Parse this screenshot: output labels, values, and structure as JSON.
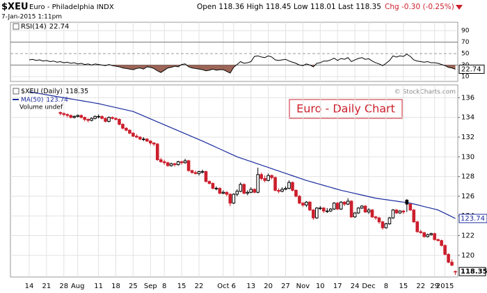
{
  "chart_data": {
    "type": "candlestick",
    "title": "$XEU",
    "subtitle": "Euro - Philadelphia INDX",
    "date": "7-Jan-2015 1:11pm",
    "quote": "Open 118.36 High 118.45 Low 118.01 Last 118.35",
    "change": "Chg -0.30 (-0.25%)",
    "credit": "© StockCharts.com",
    "annotation": "Euro - Daily Chart",
    "name": "$XEU (Daily)",
    "volume_label": "Volume undef",
    "up_color": "#000000",
    "down_color": "#cc1f2d",
    "grid": true,
    "ylim": [
      117.8,
      137.3
    ],
    "yticks": [
      120,
      122,
      124,
      126,
      128,
      130,
      132,
      134,
      136
    ],
    "categories": [
      "14",
      null,
      null,
      null,
      null,
      "21",
      null,
      null,
      null,
      null,
      "28",
      null,
      null,
      null,
      "Aug",
      null,
      null,
      null,
      null,
      null,
      "11",
      null,
      null,
      null,
      null,
      "18",
      null,
      null,
      null,
      null,
      "25",
      null,
      null,
      null,
      null,
      "Sep",
      null,
      null,
      null,
      "8",
      null,
      null,
      null,
      null,
      "15",
      null,
      null,
      null,
      null,
      "22",
      null,
      null,
      null,
      null,
      null,
      null,
      "Oct",
      null,
      null,
      "6",
      null,
      null,
      null,
      null,
      "13",
      null,
      null,
      null,
      null,
      "20",
      null,
      null,
      null,
      null,
      "27",
      null,
      null,
      null,
      null,
      "Nov",
      null,
      null,
      null,
      null,
      "10",
      null,
      null,
      null,
      null,
      "17",
      null,
      null,
      null,
      null,
      "24",
      null,
      null,
      null,
      "Dec",
      null,
      null,
      null,
      null,
      "8",
      null,
      null,
      null,
      null,
      "15",
      null,
      null,
      null,
      null,
      "22",
      null,
      null,
      null,
      "29",
      null,
      null,
      "2015",
      null,
      null,
      null
    ],
    "candles": [
      null,
      null,
      null,
      null,
      null,
      null,
      null,
      null,
      null,
      [
        134.5,
        134.6,
        134.2,
        134.4
      ],
      [
        134.4,
        134.5,
        134.1,
        134.3
      ],
      [
        134.3,
        134.4,
        134.0,
        134.2
      ],
      [
        134.2,
        134.3,
        133.9,
        134.0
      ],
      [
        134.0,
        134.2,
        133.9,
        134.1
      ],
      [
        134.1,
        134.3,
        134.0,
        134.2
      ],
      [
        134.2,
        134.3,
        133.9,
        134.0
      ],
      [
        134.0,
        134.1,
        133.6,
        133.8
      ],
      [
        133.8,
        133.9,
        133.5,
        133.7
      ],
      [
        133.7,
        134.0,
        133.6,
        133.9
      ],
      [
        133.9,
        134.2,
        133.8,
        134.1
      ],
      [
        134.1,
        134.3,
        133.9,
        134.1
      ],
      [
        134.1,
        134.2,
        133.8,
        133.9
      ],
      [
        133.9,
        134.0,
        133.5,
        133.6
      ],
      [
        133.6,
        134.1,
        133.5,
        134.0
      ],
      [
        134.0,
        134.1,
        133.8,
        133.9
      ],
      [
        133.9,
        134.0,
        133.7,
        133.8
      ],
      [
        133.8,
        133.9,
        133.2,
        133.3
      ],
      [
        133.3,
        133.4,
        132.8,
        132.9
      ],
      [
        132.9,
        133.0,
        132.6,
        132.7
      ],
      [
        132.7,
        132.8,
        132.3,
        132.4
      ],
      [
        132.4,
        132.5,
        132.0,
        132.1
      ],
      [
        132.1,
        132.3,
        131.9,
        132.0
      ],
      [
        132.0,
        132.1,
        131.7,
        131.8
      ],
      [
        131.8,
        132.0,
        131.6,
        131.8
      ],
      [
        131.8,
        131.9,
        131.5,
        131.6
      ],
      [
        131.6,
        131.7,
        131.2,
        131.4
      ],
      [
        131.4,
        131.5,
        131.1,
        131.3
      ],
      [
        131.3,
        131.4,
        129.6,
        129.7
      ],
      [
        129.7,
        129.9,
        129.4,
        129.5
      ],
      [
        129.5,
        129.7,
        129.2,
        129.4
      ],
      [
        129.4,
        129.5,
        129.0,
        129.1
      ],
      [
        129.1,
        129.4,
        129.0,
        129.3
      ],
      [
        129.3,
        129.4,
        129.0,
        129.2
      ],
      [
        129.2,
        129.6,
        129.1,
        129.5
      ],
      [
        129.5,
        129.6,
        129.2,
        129.4
      ],
      [
        129.4,
        129.8,
        129.3,
        129.6
      ],
      [
        129.6,
        129.7,
        128.5,
        128.6
      ],
      [
        128.6,
        128.7,
        128.3,
        128.4
      ],
      [
        128.4,
        128.6,
        128.2,
        128.3
      ],
      [
        128.3,
        128.6,
        128.1,
        128.5
      ],
      [
        128.5,
        128.7,
        128.3,
        128.5
      ],
      [
        128.5,
        128.6,
        127.4,
        127.5
      ],
      [
        127.5,
        127.6,
        127.2,
        127.3
      ],
      [
        127.3,
        127.4,
        126.7,
        126.8
      ],
      [
        126.8,
        127.0,
        126.6,
        126.8
      ],
      [
        126.8,
        126.9,
        126.2,
        126.3
      ],
      [
        126.3,
        126.6,
        126.2,
        126.4
      ],
      [
        126.4,
        126.5,
        126.0,
        126.2
      ],
      [
        126.2,
        126.3,
        125.0,
        125.3
      ],
      [
        125.3,
        126.3,
        125.2,
        126.2
      ],
      [
        126.2,
        126.7,
        126.0,
        126.5
      ],
      [
        126.5,
        127.4,
        126.4,
        127.2
      ],
      [
        127.2,
        127.3,
        126.2,
        126.3
      ],
      [
        126.3,
        126.6,
        126.1,
        126.4
      ],
      [
        126.4,
        126.9,
        126.3,
        126.7
      ],
      [
        126.7,
        126.8,
        126.3,
        126.4
      ],
      [
        126.4,
        128.9,
        126.3,
        128.2
      ],
      [
        128.2,
        128.4,
        127.6,
        127.8
      ],
      [
        127.8,
        128.1,
        127.4,
        127.6
      ],
      [
        127.6,
        128.3,
        127.5,
        128.1
      ],
      [
        128.1,
        128.2,
        127.7,
        127.9
      ],
      [
        127.9,
        128.0,
        126.5,
        126.6
      ],
      [
        126.6,
        126.8,
        126.3,
        126.5
      ],
      [
        126.5,
        126.9,
        126.4,
        126.7
      ],
      [
        126.7,
        127.0,
        126.6,
        126.8
      ],
      [
        126.8,
        127.6,
        126.7,
        127.4
      ],
      [
        127.4,
        127.5,
        126.5,
        126.6
      ],
      [
        126.6,
        126.7,
        125.9,
        126.0
      ],
      [
        126.0,
        126.1,
        125.2,
        125.3
      ],
      [
        125.3,
        125.4,
        124.9,
        125.1
      ],
      [
        125.1,
        125.5,
        124.9,
        125.4
      ],
      [
        125.4,
        125.5,
        124.5,
        124.6
      ],
      [
        124.6,
        124.7,
        123.6,
        123.8
      ],
      [
        123.8,
        124.9,
        123.7,
        124.8
      ],
      [
        124.8,
        125.0,
        124.6,
        124.8
      ],
      [
        124.8,
        124.9,
        124.3,
        124.5
      ],
      [
        124.5,
        124.8,
        124.3,
        124.5
      ],
      [
        124.5,
        124.8,
        124.4,
        124.7
      ],
      [
        124.7,
        125.4,
        124.6,
        125.3
      ],
      [
        125.3,
        125.4,
        124.6,
        124.7
      ],
      [
        124.7,
        125.5,
        124.6,
        125.4
      ],
      [
        125.4,
        125.5,
        125.0,
        125.2
      ],
      [
        125.2,
        125.8,
        125.1,
        125.5
      ],
      [
        125.5,
        125.6,
        123.8,
        123.9
      ],
      [
        123.9,
        124.4,
        123.8,
        124.3
      ],
      [
        124.3,
        124.9,
        124.2,
        124.8
      ],
      [
        124.8,
        125.1,
        124.7,
        125.0
      ],
      [
        125.0,
        125.1,
        124.3,
        124.4
      ],
      [
        124.4,
        124.8,
        124.2,
        124.6
      ],
      [
        124.6,
        124.7,
        123.8,
        123.9
      ],
      [
        123.9,
        124.0,
        123.6,
        123.8
      ],
      [
        123.8,
        123.9,
        123.2,
        123.4
      ],
      [
        123.4,
        123.5,
        122.6,
        122.8
      ],
      [
        122.8,
        123.3,
        122.7,
        123.2
      ],
      [
        123.2,
        123.9,
        123.1,
        123.8
      ],
      [
        123.8,
        124.7,
        123.7,
        124.6
      ],
      [
        124.6,
        124.7,
        124.2,
        124.3
      ],
      [
        124.3,
        124.6,
        124.2,
        124.5
      ],
      [
        124.5,
        124.6,
        124.2,
        124.4
      ],
      [
        125.6,
        125.7,
        124.4,
        125.2
      ],
      [
        125.2,
        125.3,
        124.5,
        124.6
      ],
      [
        124.6,
        124.7,
        123.3,
        123.4
      ],
      [
        123.4,
        123.5,
        122.3,
        122.4
      ],
      [
        122.4,
        122.6,
        122.2,
        122.3
      ],
      [
        122.3,
        122.4,
        121.8,
        121.9
      ],
      [
        121.9,
        122.2,
        121.8,
        122.1
      ],
      [
        122.1,
        122.3,
        122.0,
        122.2
      ],
      [
        122.2,
        122.3,
        121.5,
        121.6
      ],
      [
        121.6,
        121.7,
        121.4,
        121.5
      ],
      [
        121.5,
        121.6,
        120.9,
        121.0
      ],
      [
        121.0,
        121.1,
        120.0,
        120.1
      ],
      [
        120.1,
        120.2,
        119.2,
        119.3
      ],
      [
        119.3,
        119.6,
        118.9,
        119.0
      ],
      [
        118.36,
        118.45,
        118.01,
        118.35
      ]
    ],
    "overlays": [
      {
        "name": "MA(50)",
        "color": "#1a2b9c",
        "values": [
          136.6,
          136.54,
          136.48,
          136.42,
          136.36,
          136.3,
          136.24,
          136.18,
          136.12,
          136.06,
          136.0,
          135.94,
          135.88,
          135.82,
          135.76,
          135.7,
          135.64,
          135.58,
          135.52,
          135.46,
          135.4,
          135.32,
          135.24,
          135.16,
          135.08,
          135.0,
          134.92,
          134.84,
          134.76,
          134.68,
          134.6,
          134.45,
          134.3,
          134.15,
          134.0,
          133.85,
          133.7,
          133.55,
          133.4,
          133.25,
          133.1,
          132.95,
          132.8,
          132.65,
          132.5,
          132.35,
          132.2,
          132.05,
          131.9,
          131.75,
          131.6,
          131.44,
          131.28,
          131.12,
          130.96,
          130.8,
          130.64,
          130.48,
          130.32,
          130.16,
          130.0,
          129.88,
          129.76,
          129.64,
          129.52,
          129.4,
          129.28,
          129.16,
          129.04,
          128.92,
          128.8,
          128.68,
          128.56,
          128.44,
          128.32,
          128.2,
          128.08,
          127.96,
          127.84,
          127.72,
          127.6,
          127.5,
          127.4,
          127.3,
          127.2,
          127.1,
          127.0,
          126.9,
          126.8,
          126.7,
          126.6,
          126.52,
          126.44,
          126.36,
          126.28,
          126.2,
          126.12,
          126.04,
          125.96,
          125.88,
          125.8,
          125.75,
          125.7,
          125.65,
          125.6,
          125.55,
          125.5,
          125.45,
          125.4,
          125.35,
          125.3,
          125.21,
          125.13,
          125.04,
          124.95,
          124.86,
          124.78,
          124.69,
          124.6,
          124.43,
          124.26,
          124.09,
          123.91,
          123.74
        ]
      }
    ],
    "rsi": {
      "name": "RSI(14)",
      "color": "#000000",
      "fill": "#8b4a3a",
      "ylim": [
        1.5,
        104.5
      ],
      "yticks": [
        10,
        30,
        50,
        70,
        90
      ],
      "values": [
        39,
        40,
        38,
        39,
        37,
        38,
        36,
        37,
        35,
        36,
        34,
        35,
        33,
        34,
        32,
        33,
        31,
        32,
        30,
        32,
        31,
        30,
        29,
        31,
        29,
        28,
        27,
        25,
        24,
        23,
        22,
        24,
        25,
        23,
        27,
        26,
        24,
        20,
        17,
        21,
        25,
        26,
        28,
        27,
        31,
        32,
        27,
        25,
        24,
        23,
        22,
        20,
        21,
        23,
        21,
        22,
        22,
        19,
        16,
        26,
        31,
        36,
        33,
        34,
        36,
        45,
        46,
        44,
        43,
        46,
        44,
        39,
        38,
        39,
        40,
        37,
        35,
        33,
        30,
        29,
        32,
        30,
        27,
        33,
        34,
        37,
        37,
        39,
        42,
        38,
        41.5,
        40,
        43,
        36,
        39,
        41.5,
        43,
        40,
        41,
        37,
        34,
        32,
        29,
        33,
        38,
        46,
        44,
        46,
        45,
        49,
        45,
        39,
        37,
        36,
        35,
        36,
        34,
        34,
        33,
        31,
        29,
        26,
        25,
        22.74
      ]
    }
  }
}
